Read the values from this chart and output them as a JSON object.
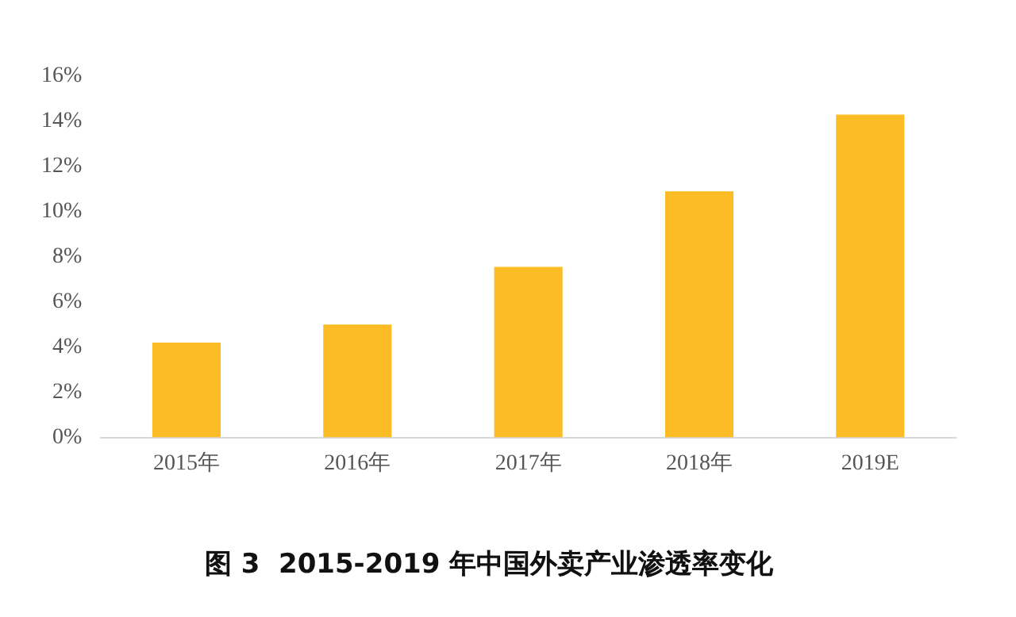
{
  "chart_data": {
    "type": "bar",
    "title": "图 3  2015-2019 年中国外卖产业渗透率变化",
    "categories": [
      "2015年",
      "2016年",
      "2017年",
      "2018年",
      "2019E"
    ],
    "values": [
      4.2,
      5.0,
      7.55,
      10.9,
      14.3
    ],
    "color": "#fbbc26",
    "ylim": [
      0,
      16
    ],
    "yticks": [
      {
        "value": 0,
        "label": "0%"
      },
      {
        "value": 2,
        "label": "2%"
      },
      {
        "value": 4,
        "label": "4%"
      },
      {
        "value": 6,
        "label": "6%"
      },
      {
        "value": 8,
        "label": "8%"
      },
      {
        "value": 10,
        "label": "10%"
      },
      {
        "value": 12,
        "label": "12%"
      },
      {
        "value": 14,
        "label": "14%"
      },
      {
        "value": 16,
        "label": "16%"
      }
    ],
    "grid": false,
    "legend": false
  }
}
